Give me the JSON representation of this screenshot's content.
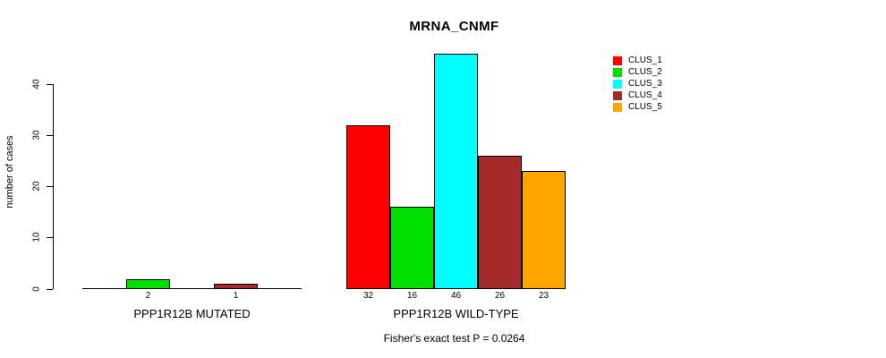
{
  "chart_data": {
    "type": "bar",
    "title": "MRNA_CNMF",
    "ylabel": "number of cases",
    "xlabel": "",
    "ylim": [
      0,
      46
    ],
    "yticks": [
      0,
      10,
      20,
      30,
      40
    ],
    "grid": false,
    "legend_position": "top-right",
    "categories": [
      "PPP1R12B MUTATED",
      "PPP1R12B WILD-TYPE"
    ],
    "series": [
      {
        "name": "CLUS_1",
        "color": "#FF0000",
        "values": [
          0,
          32
        ]
      },
      {
        "name": "CLUS_2",
        "color": "#00E000",
        "values": [
          2,
          16
        ]
      },
      {
        "name": "CLUS_3",
        "color": "#00FFFF",
        "values": [
          0,
          46
        ]
      },
      {
        "name": "CLUS_4",
        "color": "#A52A2A",
        "values": [
          1,
          26
        ]
      },
      {
        "name": "CLUS_5",
        "color": "#FFA500",
        "values": [
          0,
          23
        ]
      }
    ],
    "value_label_rule": "bar values printed under each bar only when value > 0",
    "annotation": "Fisher's exact test P = 0.0264",
    "axis_color": "#000000",
    "bar_border_color": "#000000"
  }
}
